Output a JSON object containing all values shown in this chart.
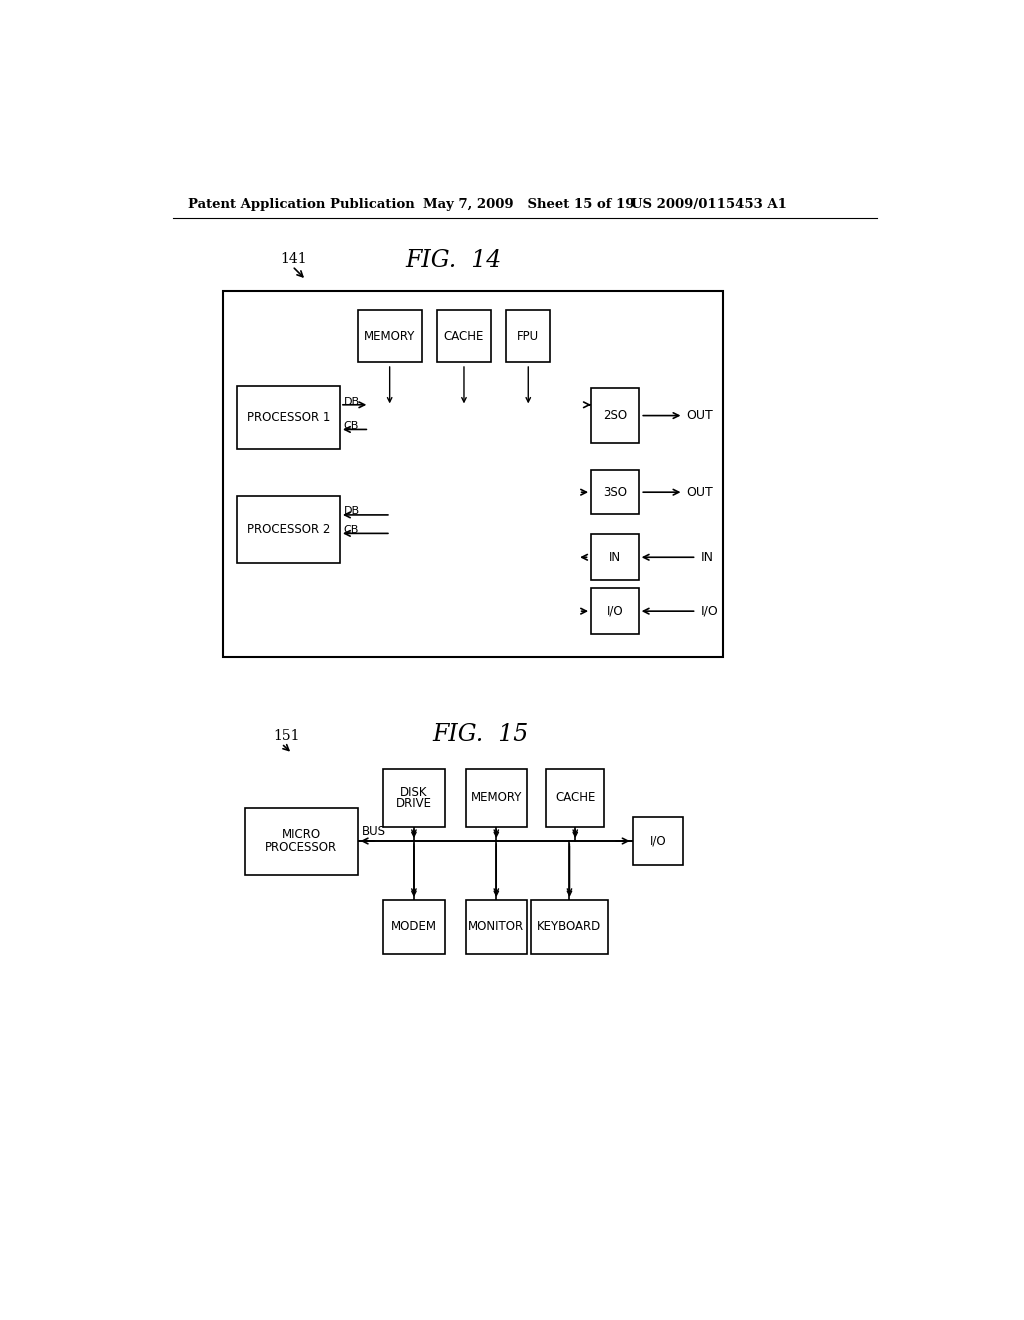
{
  "header_left": "Patent Application Publication",
  "header_mid": "May 7, 2009   Sheet 15 of 19",
  "header_right": "US 2009/0115453 A1",
  "fig14_label": "FIG.  14",
  "fig14_ref": "141",
  "fig15_label": "FIG.  15",
  "fig15_ref": "151",
  "background_color": "#ffffff",
  "line_color": "#000000"
}
